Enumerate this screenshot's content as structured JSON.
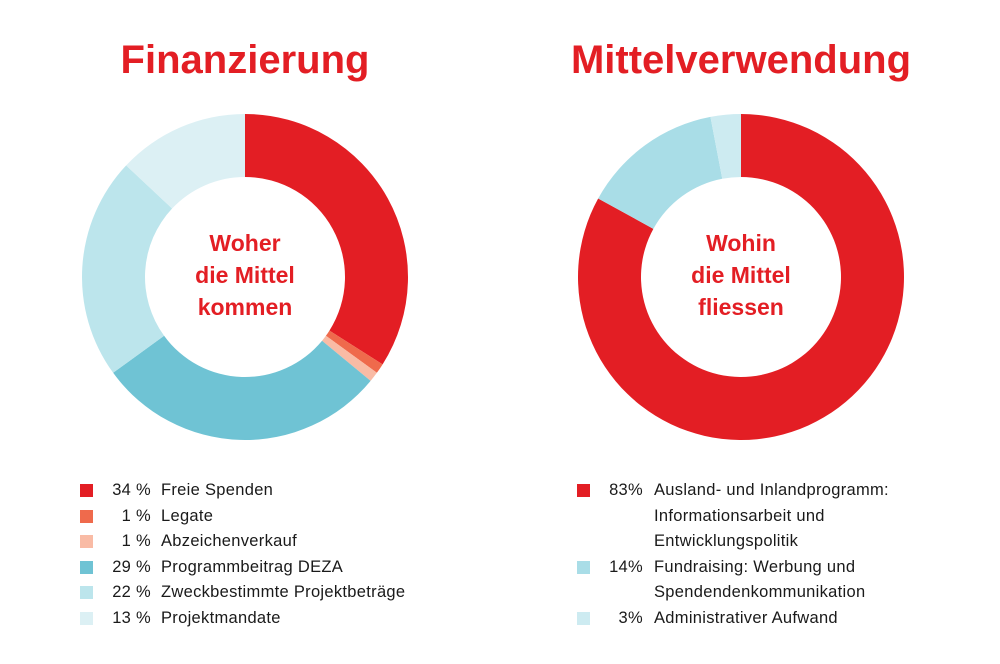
{
  "chart_data": [
    {
      "type": "pie",
      "title": "Finanzierung",
      "center_text": [
        "Woher",
        "die Mittel",
        "kommen"
      ],
      "categories": [
        "Freie Spenden",
        "Legate",
        "Abzeichenverkauf",
        "Programmbeitrag DEZA",
        "Zweckbestimmte Projektbeträge",
        "Projektmandate"
      ],
      "values": [
        34,
        1,
        1,
        29,
        22,
        13
      ],
      "value_labels": [
        "34 %",
        "1 %",
        "1 %",
        "29 %",
        "22 %",
        "13 %"
      ],
      "colors": [
        "#e31e24",
        "#ef6a4c",
        "#f9bba5",
        "#6fc3d4",
        "#bce5ec",
        "#dcf0f4"
      ]
    },
    {
      "type": "pie",
      "title": "Mittelverwendung",
      "center_text": [
        "Wohin",
        "die Mittel",
        "fliessen"
      ],
      "categories": [
        "Ausland- und Inlandprogramm: Informationsarbeit und Entwicklungspolitik",
        "Fundraising: Werbung und Spendendenkommunikation",
        "Administrativer Aufwand"
      ],
      "values": [
        83,
        14,
        3
      ],
      "value_labels": [
        "83%",
        "14%",
        "3%"
      ],
      "colors": [
        "#e31e24",
        "#a9dde7",
        "#cdebf1"
      ]
    }
  ]
}
